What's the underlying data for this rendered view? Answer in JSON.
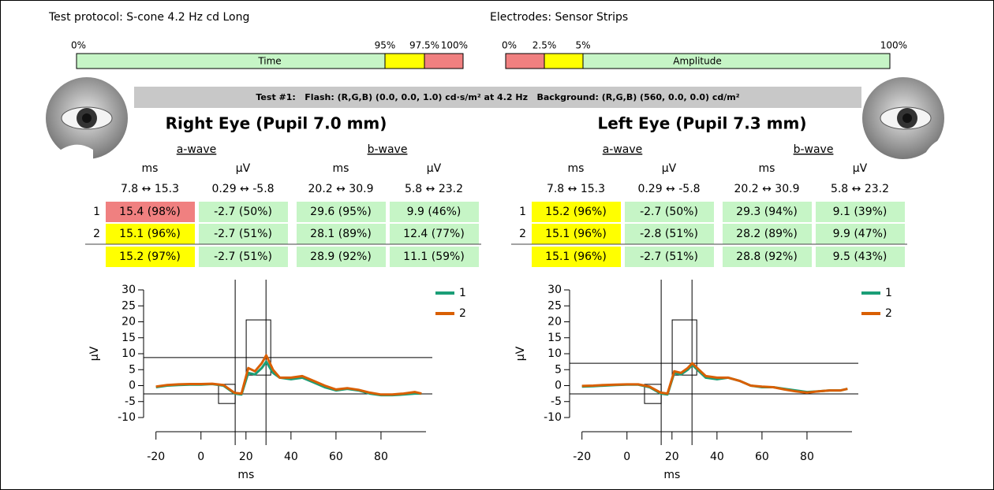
{
  "header": {
    "protocol": "Test protocol: S-cone 4.2 Hz cd Long",
    "electrodes": "Electrodes: Sensor Strips"
  },
  "time_scale": {
    "ticks": [
      "0%",
      "95%",
      "97.5%",
      "100%"
    ],
    "label": "Time"
  },
  "amplitude_scale": {
    "ticks": [
      "0%",
      "2.5%",
      "5%",
      "100%"
    ],
    "label": "Amplitude"
  },
  "test_info": "Test #1:   Flash: (R,G,B) (0.0, 0.0, 1.0) cd·s/m² at 4.2 Hz   Background: (R,G,B) (560, 0.0, 0.0) cd/m²",
  "eyes": [
    {
      "title": "Right Eye (Pupil 7.0 mm)",
      "groups": [
        "a-wave",
        "b-wave"
      ],
      "units": [
        "ms",
        "µV",
        "ms",
        "µV"
      ],
      "ranges": [
        "7.8 ↔ 15.3",
        "0.29 ↔ -5.8",
        "20.2 ↔ 30.9",
        "5.8 ↔ 23.2"
      ],
      "rows": [
        {
          "label": "1",
          "cells": [
            {
              "text": "15.4 (98%)",
              "color": "#f08080"
            },
            {
              "text": "-2.7 (50%)",
              "color": "#c6f5c6"
            },
            {
              "text": "29.6 (95%)",
              "color": "#c6f5c6"
            },
            {
              "text": "9.9 (46%)",
              "color": "#c6f5c6"
            }
          ]
        },
        {
          "label": "2",
          "cells": [
            {
              "text": "15.1 (96%)",
              "color": "#ffff00"
            },
            {
              "text": "-2.7 (51%)",
              "color": "#c6f5c6"
            },
            {
              "text": "28.1 (89%)",
              "color": "#c6f5c6"
            },
            {
              "text": "12.4 (77%)",
              "color": "#c6f5c6"
            }
          ]
        }
      ],
      "mean": [
        {
          "text": "15.2 (97%)",
          "color": "#ffff00"
        },
        {
          "text": "-2.7 (51%)",
          "color": "#c6f5c6"
        },
        {
          "text": "28.9 (92%)",
          "color": "#c6f5c6"
        },
        {
          "text": "11.1 (59%)",
          "color": "#c6f5c6"
        }
      ]
    },
    {
      "title": "Left Eye (Pupil 7.3 mm)",
      "groups": [
        "a-wave",
        "b-wave"
      ],
      "units": [
        "ms",
        "µV",
        "ms",
        "µV"
      ],
      "ranges": [
        "7.8 ↔ 15.3",
        "0.29 ↔ -5.8",
        "20.2 ↔ 30.9",
        "5.8 ↔ 23.2"
      ],
      "rows": [
        {
          "label": "1",
          "cells": [
            {
              "text": "15.2 (96%)",
              "color": "#ffff00"
            },
            {
              "text": "-2.7 (50%)",
              "color": "#c6f5c6"
            },
            {
              "text": "29.3 (94%)",
              "color": "#c6f5c6"
            },
            {
              "text": "9.1 (39%)",
              "color": "#c6f5c6"
            }
          ]
        },
        {
          "label": "2",
          "cells": [
            {
              "text": "15.1 (96%)",
              "color": "#ffff00"
            },
            {
              "text": "-2.8 (51%)",
              "color": "#c6f5c6"
            },
            {
              "text": "28.2 (89%)",
              "color": "#c6f5c6"
            },
            {
              "text": "9.9 (47%)",
              "color": "#c6f5c6"
            }
          ]
        }
      ],
      "mean": [
        {
          "text": "15.1 (96%)",
          "color": "#ffff00"
        },
        {
          "text": "-2.7 (51%)",
          "color": "#c6f5c6"
        },
        {
          "text": "28.8 (92%)",
          "color": "#c6f5c6"
        },
        {
          "text": "9.5 (43%)",
          "color": "#c6f5c6"
        }
      ]
    }
  ],
  "plots": [
    {
      "ylabel": "µV",
      "xlabel": "ms",
      "xlim": [
        -22,
        100
      ],
      "ylim": [
        -10,
        30
      ],
      "xticks": [
        -20,
        0,
        20,
        40,
        60,
        80
      ],
      "yticks": [
        -10,
        -5,
        0,
        5,
        10,
        15,
        20,
        25,
        30
      ],
      "x": [
        -20,
        -15,
        -10,
        -5,
        0,
        5,
        10,
        15,
        18,
        21,
        24,
        27,
        29,
        32,
        35,
        40,
        45,
        50,
        55,
        60,
        65,
        70,
        75,
        80,
        85,
        90,
        95,
        98
      ],
      "series": [
        {
          "name": "1",
          "color": "#1b9e77",
          "values": [
            -0.5,
            0,
            0.2,
            0.3,
            0.3,
            0.5,
            0,
            -2.5,
            -2.8,
            4,
            3.5,
            5.5,
            7.5,
            4,
            2.5,
            2,
            2.5,
            1,
            -0.5,
            -1.5,
            -1,
            -1.5,
            -2.5,
            -3,
            -3,
            -2.8,
            -2.5,
            -2.5
          ]
        },
        {
          "name": "2",
          "color": "#d95f02",
          "values": [
            -0.3,
            0.2,
            0.4,
            0.5,
            0.5,
            0.6,
            0.2,
            -2.3,
            -2.5,
            5.5,
            4.5,
            7,
            9.5,
            5,
            2.5,
            2.5,
            3,
            1.5,
            0,
            -1.2,
            -0.8,
            -1.3,
            -2.2,
            -2.8,
            -2.8,
            -2.5,
            -2,
            -2.5
          ]
        }
      ],
      "cursors": {
        "x": [
          15.2,
          28.9
        ],
        "y": [
          8.8,
          -2.6
        ]
      },
      "boxes": [
        {
          "x": [
            7.8,
            15.2
          ],
          "y": [
            0.4,
            -5.6
          ]
        },
        {
          "x": [
            20.1,
            31.0
          ],
          "y": [
            20.6,
            3.3
          ]
        }
      ]
    },
    {
      "ylabel": "µV",
      "xlabel": "ms",
      "xlim": [
        -22,
        100
      ],
      "ylim": [
        -10,
        30
      ],
      "xticks": [
        -20,
        0,
        20,
        40,
        60,
        80
      ],
      "yticks": [
        -10,
        -5,
        0,
        5,
        10,
        15,
        20,
        25,
        30
      ],
      "x": [
        -20,
        -15,
        -10,
        -5,
        0,
        5,
        10,
        15,
        18,
        21,
        24,
        27,
        29,
        32,
        35,
        40,
        45,
        50,
        55,
        60,
        65,
        70,
        75,
        80,
        85,
        90,
        95,
        98
      ],
      "series": [
        {
          "name": "1",
          "color": "#1b9e77",
          "values": [
            -0.3,
            -0.2,
            0,
            0.2,
            0.3,
            0.3,
            -0.5,
            -2.5,
            -2.8,
            4,
            3.5,
            5,
            6.5,
            4.5,
            2.5,
            2,
            2.5,
            1.5,
            0,
            -0.5,
            -0.5,
            -1,
            -1.5,
            -2,
            -1.8,
            -1.5,
            -1.5,
            -1
          ]
        },
        {
          "name": "2",
          "color": "#d95f02",
          "values": [
            -0.1,
            0,
            0.2,
            0.3,
            0.4,
            0.4,
            -0.3,
            -2.2,
            -2.5,
            4.5,
            4,
            5.5,
            7,
            5,
            3,
            2.5,
            2.5,
            1.5,
            0,
            -0.3,
            -0.5,
            -1.2,
            -1.8,
            -2.2,
            -1.8,
            -1.5,
            -1.5,
            -1
          ]
        }
      ],
      "cursors": {
        "x": [
          15.2,
          28.9
        ],
        "y": [
          7.0,
          -2.6
        ]
      },
      "boxes": [
        {
          "x": [
            7.8,
            15.2
          ],
          "y": [
            0.4,
            -5.6
          ]
        },
        {
          "x": [
            20.1,
            31.0
          ],
          "y": [
            20.6,
            3.3
          ]
        }
      ]
    }
  ]
}
